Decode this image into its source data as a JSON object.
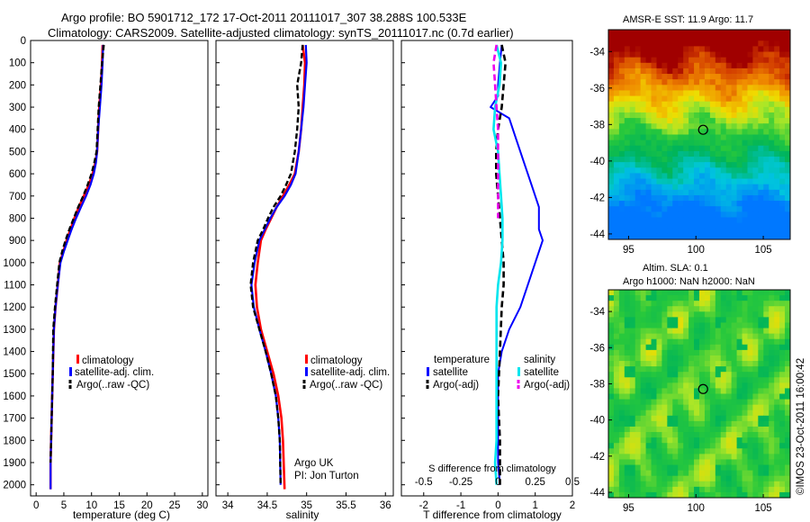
{
  "header": {
    "line1": "Argo profile: BO 5901712_172 17-Oct-2011 20111017_307 38.288S 100.533E",
    "line2": "Climatology: CARS2009. Satellite-adjusted climatology: synTS_20111017.nc (0.7d earlier)"
  },
  "credits": {
    "argo": "Argo UK",
    "pi": "PI: Jon Turton",
    "stamp": "©IMOS 23-Oct-2011 16:00:42"
  },
  "colors": {
    "climatology": "#ff0000",
    "satellite": "#0000ff",
    "argo": "#000000",
    "sal_satellite": "#00e5ee",
    "sal_argo": "#ee00ee"
  },
  "chart_data": [
    {
      "id": "temperature",
      "type": "line",
      "xlabel": "temperature (deg C)",
      "ylabel": "",
      "xlim": [
        -1,
        31
      ],
      "ylim": [
        2050,
        0
      ],
      "xticks": [
        0,
        5,
        10,
        15,
        20,
        25,
        30
      ],
      "yticks": [
        0,
        100,
        200,
        300,
        400,
        500,
        600,
        700,
        800,
        900,
        1000,
        1100,
        1200,
        1300,
        1400,
        1500,
        1600,
        1700,
        1800,
        1900,
        2000
      ],
      "legend": [
        "climatology",
        "satellite-adj. clim.",
        "Argo(..raw -QC)"
      ],
      "series": [
        {
          "name": "climatology",
          "x": [
            12.0,
            11.9,
            11.7,
            11.4,
            11.2,
            11.0,
            10.7,
            10.2,
            9.5,
            8.6,
            7.7,
            6.9,
            6.2,
            5.5,
            4.9,
            4.3,
            3.9,
            3.5,
            3.2,
            3.0,
            2.9,
            2.8,
            2.7,
            2.6,
            2.6
          ],
          "y": [
            20,
            100,
            200,
            300,
            400,
            500,
            550,
            600,
            650,
            700,
            750,
            800,
            850,
            900,
            950,
            1000,
            1100,
            1200,
            1300,
            1500,
            1600,
            1700,
            1800,
            1900,
            2020
          ]
        },
        {
          "name": "satellite-adj. clim.",
          "x": [
            12.1,
            12.0,
            11.8,
            11.5,
            11.2,
            11.0,
            10.8,
            10.4,
            9.8,
            9.0,
            8.1,
            7.2,
            6.4,
            5.7,
            5.0,
            4.4,
            3.9,
            3.5,
            3.2,
            3.0,
            2.9,
            2.8,
            2.7,
            2.6,
            2.6
          ],
          "y": [
            20,
            100,
            200,
            300,
            400,
            500,
            550,
            600,
            650,
            700,
            750,
            800,
            850,
            900,
            950,
            1000,
            1100,
            1200,
            1300,
            1500,
            1600,
            1700,
            1800,
            1900,
            2020
          ]
        },
        {
          "name": "Argo(..raw -QC)",
          "x": [
            12.2,
            11.9,
            11.6,
            11.3,
            11.1,
            10.9,
            10.5,
            10.0,
            9.3,
            8.5,
            7.6,
            6.8,
            6.0,
            5.3,
            4.7,
            4.2,
            3.8,
            3.4,
            3.1,
            3.0,
            2.9,
            2.8,
            2.7,
            2.6
          ],
          "y": [
            20,
            100,
            200,
            300,
            400,
            500,
            550,
            600,
            650,
            700,
            750,
            800,
            850,
            900,
            950,
            1000,
            1100,
            1200,
            1300,
            1500,
            1600,
            1700,
            1800,
            1900
          ]
        }
      ]
    },
    {
      "id": "salinity",
      "type": "line",
      "xlabel": "salinity",
      "xlim": [
        33.85,
        36.1
      ],
      "ylim": [
        2050,
        0
      ],
      "xticks": [
        34,
        34.5,
        35,
        35.5,
        36
      ],
      "legend": [
        "climatology",
        "satellite-adj. clim.",
        "Argo(..raw -QC)"
      ],
      "series": [
        {
          "name": "climatology",
          "x": [
            34.95,
            34.98,
            34.97,
            34.95,
            34.93,
            34.9,
            34.85,
            34.78,
            34.7,
            34.62,
            34.55,
            34.48,
            34.42,
            34.38,
            34.35,
            34.37,
            34.42,
            34.5,
            34.58,
            34.64,
            34.68,
            34.7,
            34.72
          ],
          "y": [
            20,
            100,
            200,
            300,
            400,
            500,
            600,
            650,
            700,
            750,
            800,
            850,
            900,
            1000,
            1100,
            1200,
            1300,
            1400,
            1500,
            1600,
            1700,
            1800,
            2020
          ]
        },
        {
          "name": "satellite-adj. clim.",
          "x": [
            34.99,
            35.0,
            34.98,
            34.96,
            34.93,
            34.9,
            34.86,
            34.8,
            34.72,
            34.62,
            34.54,
            34.47,
            34.4,
            34.34,
            34.3,
            34.33,
            34.4,
            34.48,
            34.55,
            34.61,
            34.64,
            34.66,
            34.67
          ],
          "y": [
            20,
            100,
            200,
            300,
            400,
            500,
            600,
            650,
            700,
            750,
            800,
            850,
            900,
            1000,
            1100,
            1200,
            1300,
            1400,
            1500,
            1600,
            1700,
            1800,
            2000
          ]
        },
        {
          "name": "Argo(..raw -QC)",
          "x": [
            34.95,
            34.93,
            34.88,
            34.9,
            34.88,
            34.85,
            34.8,
            34.74,
            34.67,
            34.58,
            34.51,
            34.45,
            34.38,
            34.32,
            34.29,
            34.32,
            34.4,
            34.48,
            34.55,
            34.61,
            34.64,
            34.66,
            34.67
          ],
          "y": [
            20,
            100,
            200,
            300,
            400,
            500,
            600,
            650,
            700,
            750,
            800,
            850,
            900,
            1000,
            1100,
            1200,
            1300,
            1400,
            1500,
            1600,
            1700,
            1800,
            2000
          ]
        }
      ]
    },
    {
      "id": "difference",
      "type": "line",
      "xlabel": "T difference from climatology",
      "xlabel_top": "S difference from climatology",
      "xlim": [
        -2.6,
        2.0
      ],
      "ylim": [
        2050,
        0
      ],
      "xticks": [
        -2,
        -1,
        0,
        1,
        2
      ],
      "xtick_labels": [
        "-2",
        "-1",
        "0",
        "1",
        "2"
      ],
      "sticks_s": [
        -0.5,
        -0.25,
        0,
        0.25,
        0.5
      ],
      "stick_labels": [
        "-0.5",
        "-0.25",
        "0",
        "0.25",
        "0.5"
      ],
      "s_scale": 4,
      "legend_temperature_title": "temperature",
      "legend_salinity_title": "salinity",
      "legend": [
        "satellite",
        "Argo(-adj)",
        "satellite",
        "Argo(-adj)"
      ],
      "series": [
        {
          "name": "T satellite",
          "x": [
            0.1,
            0.05,
            0,
            0,
            -0.2,
            0.3,
            0.5,
            0.7,
            0.9,
            1.1,
            1.1,
            1.2,
            0.9,
            0.6,
            0.3,
            0.1,
            0,
            0,
            0,
            0.05
          ],
          "y": [
            20,
            100,
            200,
            250,
            300,
            350,
            450,
            550,
            650,
            750,
            850,
            900,
            1050,
            1200,
            1300,
            1400,
            1500,
            1700,
            1900,
            2000
          ]
        },
        {
          "name": "T Argo(-adj)",
          "x": [
            0.1,
            0.2,
            0.15,
            0.1,
            0,
            -0.05,
            -0.05,
            0,
            0.05,
            0.1,
            0.15,
            0.15,
            0.1,
            0.05,
            0,
            0.05,
            0.05,
            0.05
          ],
          "y": [
            20,
            100,
            200,
            300,
            400,
            500,
            600,
            700,
            800,
            900,
            1000,
            1100,
            1200,
            1400,
            1600,
            1800,
            1900,
            2000
          ]
        },
        {
          "name": "S satellite",
          "x": [
            -0.01,
            0.02,
            0.01,
            -0.02,
            -0.03,
            0.0,
            0.01,
            0.02,
            0.03,
            0.03,
            0.02,
            0.0,
            -0.01,
            -0.01,
            -0.01,
            -0.01,
            -0.02,
            -0.01
          ],
          "y": [
            20,
            100,
            200,
            300,
            400,
            500,
            600,
            700,
            800,
            900,
            1000,
            1100,
            1200,
            1400,
            1600,
            1800,
            1900,
            2000
          ]
        },
        {
          "name": "S Argo(-adj)",
          "x": [
            -0.01,
            -0.03,
            -0.02,
            -0.01,
            0.0,
            0.0,
            0.0,
            0.0,
            0.0
          ],
          "y": [
            20,
            100,
            200,
            300,
            400,
            500,
            600,
            700,
            800
          ]
        }
      ]
    },
    {
      "id": "sst_map",
      "type": "heatmap",
      "title": "AMSR-E SST: 11.9 Argo: 11.7",
      "xlim": [
        93.5,
        107
      ],
      "ylim": [
        -44.3,
        -32.8
      ],
      "xticks": [
        95,
        100,
        105
      ],
      "yticks": [
        -34,
        -36,
        -38,
        -40,
        -42,
        -44
      ],
      "marker": {
        "lon": 100.533,
        "lat": -38.288
      }
    },
    {
      "id": "sla_map",
      "type": "heatmap",
      "title": "Altim. SLA: 0.1",
      "subtitle": "Argo h1000: NaN h2000: NaN",
      "xlim": [
        93.5,
        107
      ],
      "ylim": [
        -44.3,
        -32.8
      ],
      "xticks": [
        95,
        100,
        105
      ],
      "yticks": [
        -34,
        -36,
        -38,
        -40,
        -42,
        -44
      ],
      "marker": {
        "lon": 100.533,
        "lat": -38.288
      }
    }
  ]
}
